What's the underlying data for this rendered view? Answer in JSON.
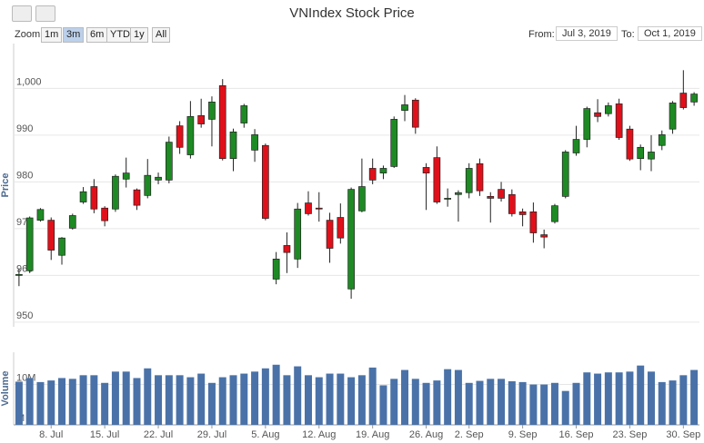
{
  "chart_data": {
    "type": "candlestick",
    "title": "VNIndex Stock Price",
    "zoom_label": "Zoom",
    "range_buttons": [
      "1m",
      "3m",
      "6m",
      "YTD",
      "1y",
      "All"
    ],
    "selected_button": 1,
    "from_label": "From:",
    "from_value": "Jul 3, 2019",
    "to_label": "To:",
    "to_value": "Oct 1, 2019",
    "y_axis_title": "Price",
    "volume_axis_title": "Volume",
    "up_color": "#1e8a24",
    "down_color": "#e0101a",
    "volume_color": "#4a72a8",
    "grid": true,
    "categories": [
      null,
      null,
      null,
      "8. Jul",
      null,
      null,
      null,
      null,
      "15. Jul",
      null,
      null,
      null,
      null,
      "22. Jul",
      null,
      null,
      null,
      null,
      "29. Jul",
      null,
      null,
      null,
      null,
      "5. Aug",
      null,
      null,
      null,
      null,
      "12. Aug",
      null,
      null,
      null,
      null,
      "19. Aug",
      null,
      null,
      null,
      null,
      "26. Aug",
      null,
      null,
      null,
      "2. Sep",
      null,
      null,
      null,
      null,
      "9. Sep",
      null,
      null,
      null,
      null,
      "16. Sep",
      null,
      null,
      null,
      null,
      "23. Sep",
      null,
      null,
      null,
      null,
      "30. Sep",
      null
    ],
    "open": [
      960,
      961,
      971.8,
      971.8,
      964.3,
      970.1,
      975.7,
      979,
      974.4,
      974.2,
      980.6,
      978.3,
      977.1,
      980.4,
      980.4,
      992,
      985.8,
      994.2,
      993.4,
      1000.6,
      985,
      992.6,
      986.8,
      987.8,
      959.2,
      966.4,
      963.5,
      975.5,
      974.4,
      971.8,
      972.4,
      957.1,
      973.8,
      982.9,
      981.9,
      983.3,
      995.3,
      997.5,
      983.1,
      985.2,
      976.3,
      977.3,
      977.7,
      983.9,
      976.9,
      978.4,
      977.3,
      973.6,
      973.6,
      968.7,
      971.5,
      976.9,
      986.2,
      989.1,
      994.8,
      994.6,
      996.7,
      991.3,
      985,
      984.9,
      987.8,
      991.3,
      999,
      997.1
    ],
    "high": [
      961.5,
      972.6,
      974.4,
      972.4,
      968.2,
      973.2,
      978.9,
      980.6,
      974.8,
      981.6,
      985.2,
      978.6,
      984.9,
      982,
      989.7,
      993,
      997.3,
      997.8,
      998.3,
      1002,
      991.4,
      996.7,
      991.3,
      988.2,
      965,
      969.2,
      975.5,
      978,
      977.8,
      973.4,
      975.4,
      978.8,
      985,
      985,
      983.5,
      994,
      998.6,
      997.9,
      984,
      987.6,
      978.6,
      978.2,
      984,
      985,
      977.8,
      980,
      978.4,
      974.3,
      975.6,
      969.8,
      975.3,
      986.8,
      992,
      996.1,
      997.7,
      997,
      997.8,
      992,
      988,
      990,
      991,
      997.3,
      1003.9,
      999.2
    ],
    "low": [
      957.7,
      960.5,
      971.5,
      963.3,
      962.3,
      969.8,
      975.3,
      973.3,
      970.5,
      973.6,
      978.8,
      974,
      976.5,
      979.5,
      979.7,
      986,
      985,
      991.6,
      987.6,
      984.6,
      982.3,
      991.6,
      984.3,
      971.8,
      958.1,
      960.5,
      961.6,
      972.8,
      971.5,
      962.7,
      966.8,
      955,
      973.5,
      979.5,
      980.6,
      983,
      993,
      990.3,
      974,
      975.3,
      974.7,
      971.5,
      976.5,
      977,
      971.3,
      975.8,
      972.6,
      970.5,
      967,
      965.8,
      971.1,
      976.5,
      985.6,
      987.4,
      992.8,
      994,
      989,
      984.5,
      982.5,
      982.3,
      986.8,
      990.3,
      995.5,
      996.3
    ],
    "close": [
      960.2,
      972.3,
      974.1,
      965.4,
      968,
      972.8,
      977.9,
      974.2,
      971.7,
      981.2,
      981.9,
      975,
      981.4,
      981,
      988.5,
      987.4,
      994,
      992.4,
      997.1,
      985,
      990.7,
      996.3,
      990.1,
      972.2,
      963.5,
      964.9,
      974.2,
      973.2,
      974.2,
      965.8,
      968,
      978.4,
      979,
      980.4,
      982.9,
      993.4,
      996.5,
      991.7,
      981.9,
      975.7,
      976.5,
      977.7,
      982.9,
      978.1,
      976.5,
      976.5,
      973.2,
      973,
      969.1,
      968.2,
      974.9,
      986.4,
      989.1,
      995.7,
      994,
      996.3,
      989.5,
      984.9,
      987.4,
      986.4,
      990.1,
      996.9,
      995.9,
      998.8
    ],
    "volume": [
      10.7,
      11.6,
      10.6,
      11,
      11.6,
      11.4,
      12.3,
      12.3,
      10.4,
      13.2,
      13.2,
      11.6,
      14,
      12.3,
      12.3,
      12.3,
      11.8,
      12.7,
      10.4,
      11.8,
      12.3,
      12.7,
      13.2,
      14,
      14.9,
      12.3,
      14.5,
      12.3,
      11.8,
      12.7,
      12.7,
      11.8,
      12.3,
      14.2,
      9.8,
      11.4,
      13.6,
      11.4,
      10.4,
      11,
      13.8,
      13.6,
      10.4,
      10.9,
      11.4,
      11.4,
      10.8,
      10.6,
      10,
      10,
      10.4,
      8.4,
      10.4,
      13,
      12.7,
      13,
      13,
      13.2,
      14.7,
      13.2,
      10.6,
      11,
      12.3,
      13.6
    ],
    "ylim": [
      949,
      1009.6
    ],
    "yticks": [
      950,
      960,
      970,
      980,
      990,
      {
        "value": 1000,
        "label": "1,000"
      }
    ],
    "volume_ylim": [
      0,
      18
    ],
    "volume_yticks": [
      {
        "value": 0,
        "label": "M"
      },
      {
        "value": 10,
        "label": "10M"
      }
    ]
  }
}
